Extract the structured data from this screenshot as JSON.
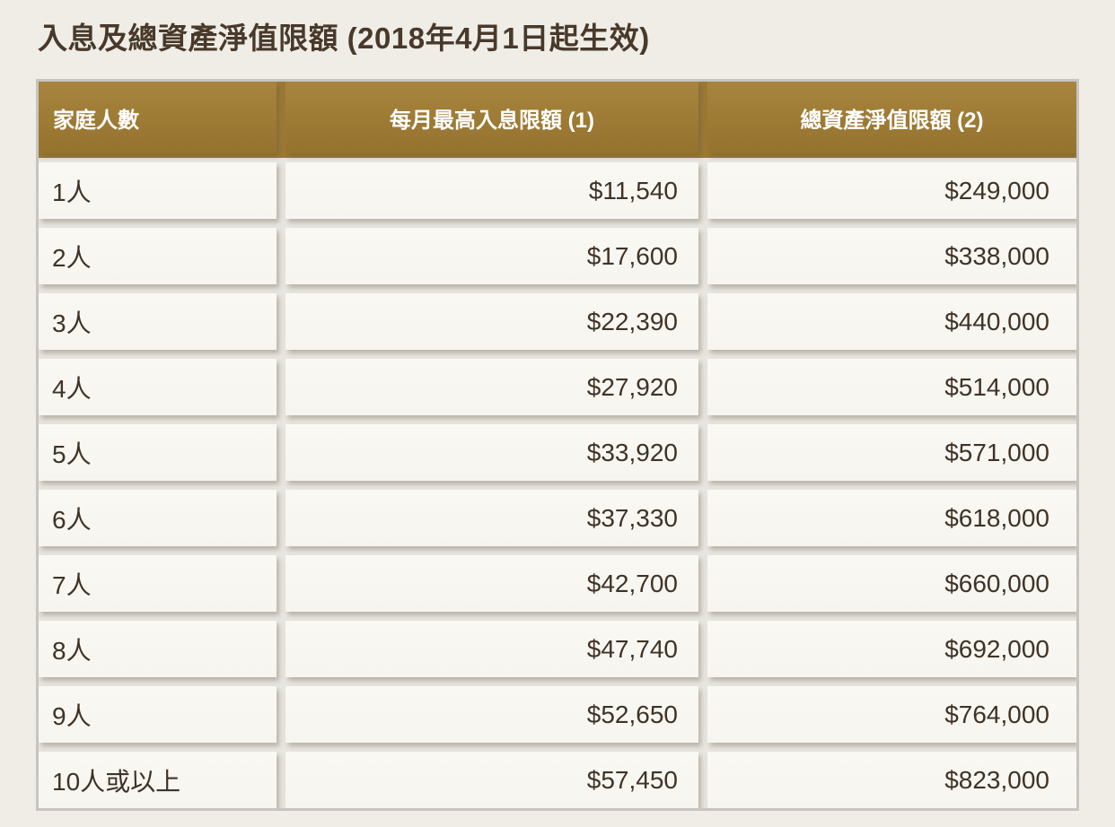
{
  "page": {
    "title": "入息及總資產淨值限額 (2018年4月1日起生效)"
  },
  "table": {
    "columns": [
      "家庭人數",
      "每月最高入息限額 (1)",
      "總資產淨值限額 (2)"
    ],
    "rows": [
      {
        "household_size": "1人",
        "max_monthly_income": "$11,540",
        "total_net_asset_limit": "$249,000"
      },
      {
        "household_size": "2人",
        "max_monthly_income": "$17,600",
        "total_net_asset_limit": "$338,000"
      },
      {
        "household_size": "3人",
        "max_monthly_income": "$22,390",
        "total_net_asset_limit": "$440,000"
      },
      {
        "household_size": "4人",
        "max_monthly_income": "$27,920",
        "total_net_asset_limit": "$514,000"
      },
      {
        "household_size": "5人",
        "max_monthly_income": "$33,920",
        "total_net_asset_limit": "$571,000"
      },
      {
        "household_size": "6人",
        "max_monthly_income": "$37,330",
        "total_net_asset_limit": "$618,000"
      },
      {
        "household_size": "7人",
        "max_monthly_income": "$42,700",
        "total_net_asset_limit": "$660,000"
      },
      {
        "household_size": "8人",
        "max_monthly_income": "$47,740",
        "total_net_asset_limit": "$692,000"
      },
      {
        "household_size": "9人",
        "max_monthly_income": "$52,650",
        "total_net_asset_limit": "$764,000"
      },
      {
        "household_size": "10人或以上",
        "max_monthly_income": "$57,450",
        "total_net_asset_limit": "$823,000"
      }
    ],
    "colors": {
      "header_bg": "#9d7b35",
      "header_text": "#ffffff",
      "cell_bg": "#f7f5ef",
      "body_text": "#3e3327",
      "page_bg": "#efede6",
      "outer_border": "#c6c5c2",
      "title_text": "#48392a"
    }
  }
}
